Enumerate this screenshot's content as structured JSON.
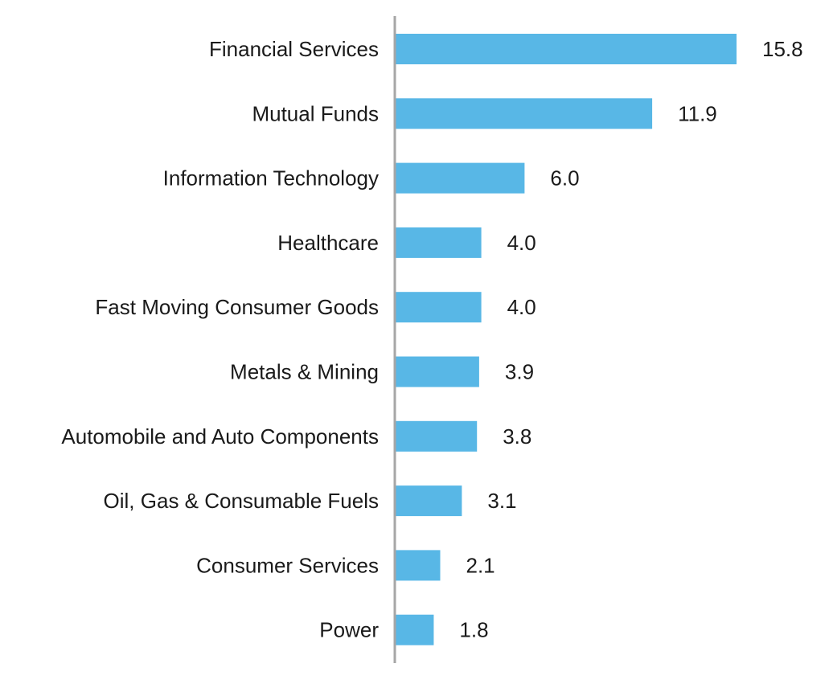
{
  "chart_data": {
    "type": "bar",
    "orientation": "horizontal",
    "categories": [
      "Financial Services",
      "Mutual Funds",
      "Information Technology",
      "Healthcare",
      "Fast Moving Consumer Goods",
      "Metals & Mining",
      "Automobile and Auto Components",
      "Oil, Gas & Consumable Fuels",
      "Consumer Services",
      "Power"
    ],
    "values": [
      15.8,
      11.9,
      6.0,
      4.0,
      4.0,
      3.9,
      3.8,
      3.1,
      2.1,
      1.8
    ],
    "value_labels": [
      "15.8",
      "11.9",
      "6.0",
      "4.0",
      "4.0",
      "3.9",
      "3.8",
      "3.1",
      "2.1",
      "1.8"
    ],
    "title": "",
    "xlabel": "",
    "ylabel": "",
    "xlim": [
      0,
      15.8
    ],
    "grid": false,
    "legend": "none",
    "colors": {
      "bar": "#58b7e6",
      "axis": "#a6a6a6",
      "text": "#1a1a1a"
    }
  }
}
